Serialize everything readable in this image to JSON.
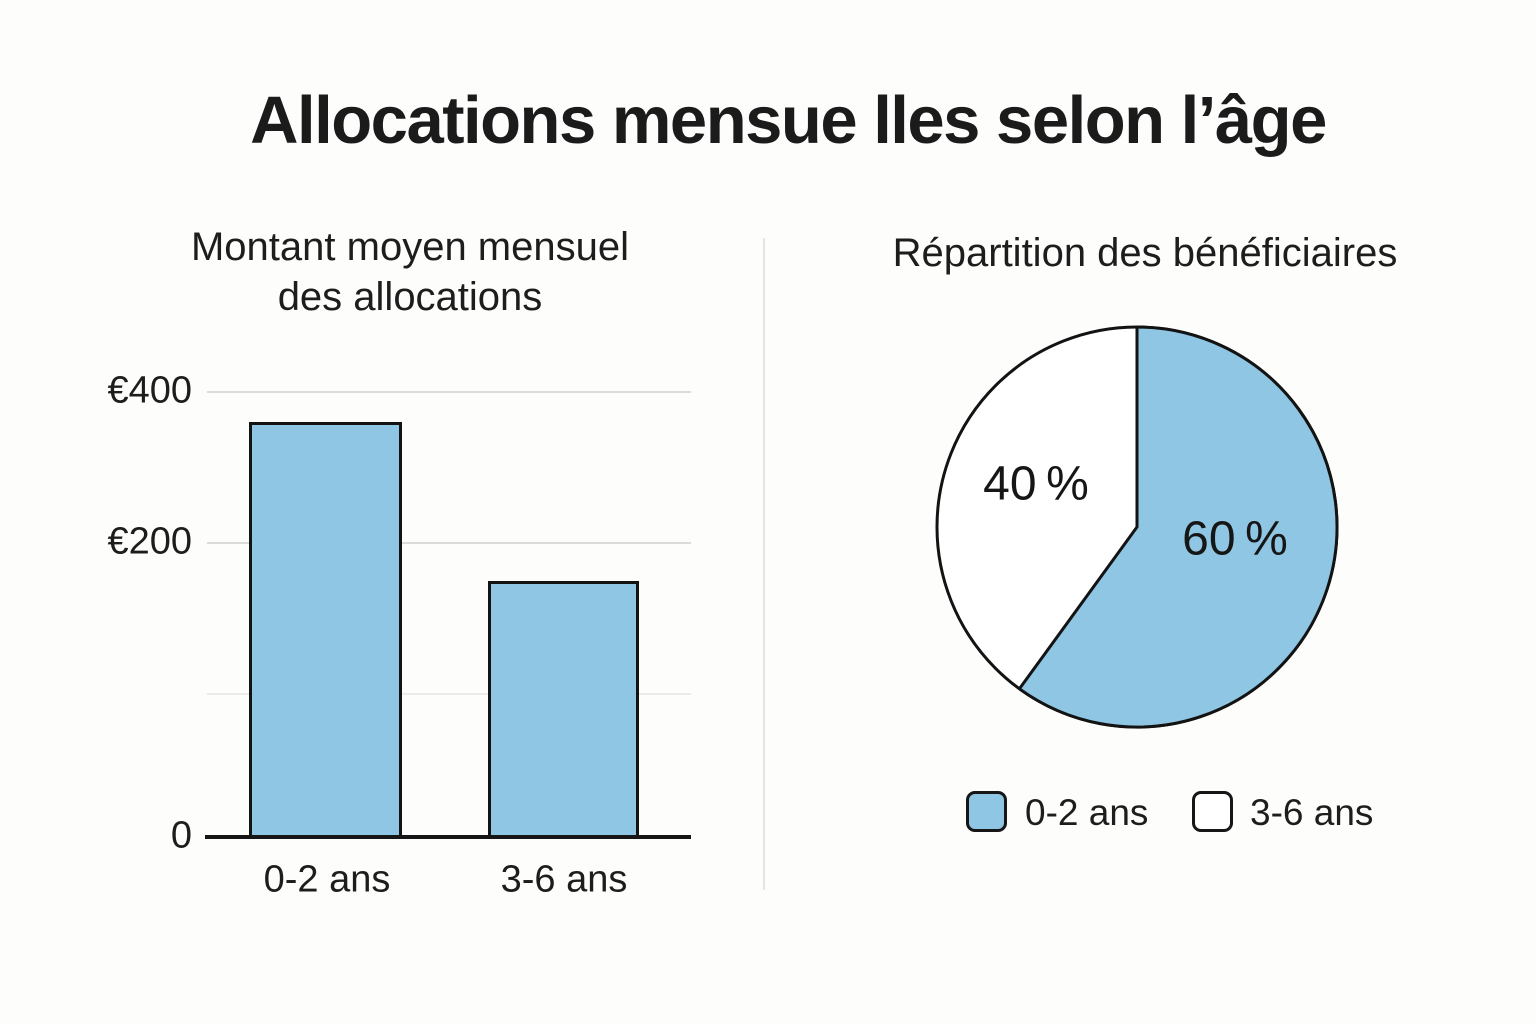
{
  "page": {
    "title": "Allocations mensue lles selon l’âge"
  },
  "colors": {
    "accent_blue": "#8ec6e3",
    "slice_white": "#ffffff",
    "ink": "#1a1a1a",
    "gridline": "#dbdbd9",
    "background": "#fdfdfc"
  },
  "chart_data": [
    {
      "type": "bar",
      "title": "Montant moyen mensuel des allocations",
      "title_lines": [
        "Montant moyen mensuel",
        "des allocations"
      ],
      "categories": [
        "0-2 ans",
        "3-6 ans"
      ],
      "values": [
        360,
        150
      ],
      "currency": "EUR",
      "xlabel": "",
      "ylabel": "",
      "ylim": [
        0,
        400
      ],
      "yticks": [
        {
          "label": "€400",
          "value": 400
        },
        {
          "label": "€200",
          "value": 200
        },
        {
          "label": "0",
          "value": 0
        }
      ],
      "grid": true,
      "bar_color": "#8ec6e3"
    },
    {
      "type": "pie",
      "title": "Répartition des bénéficiaires",
      "start_angle": "12-o-clock, clockwise",
      "slices": [
        {
          "label": "0-2 ans",
          "value": 60,
          "text": "60 %",
          "color": "#8ec6e3"
        },
        {
          "label": "3-6 ans",
          "value": 40,
          "text": "40 %",
          "color": "#ffffff"
        }
      ],
      "legend_position": "bottom"
    }
  ]
}
